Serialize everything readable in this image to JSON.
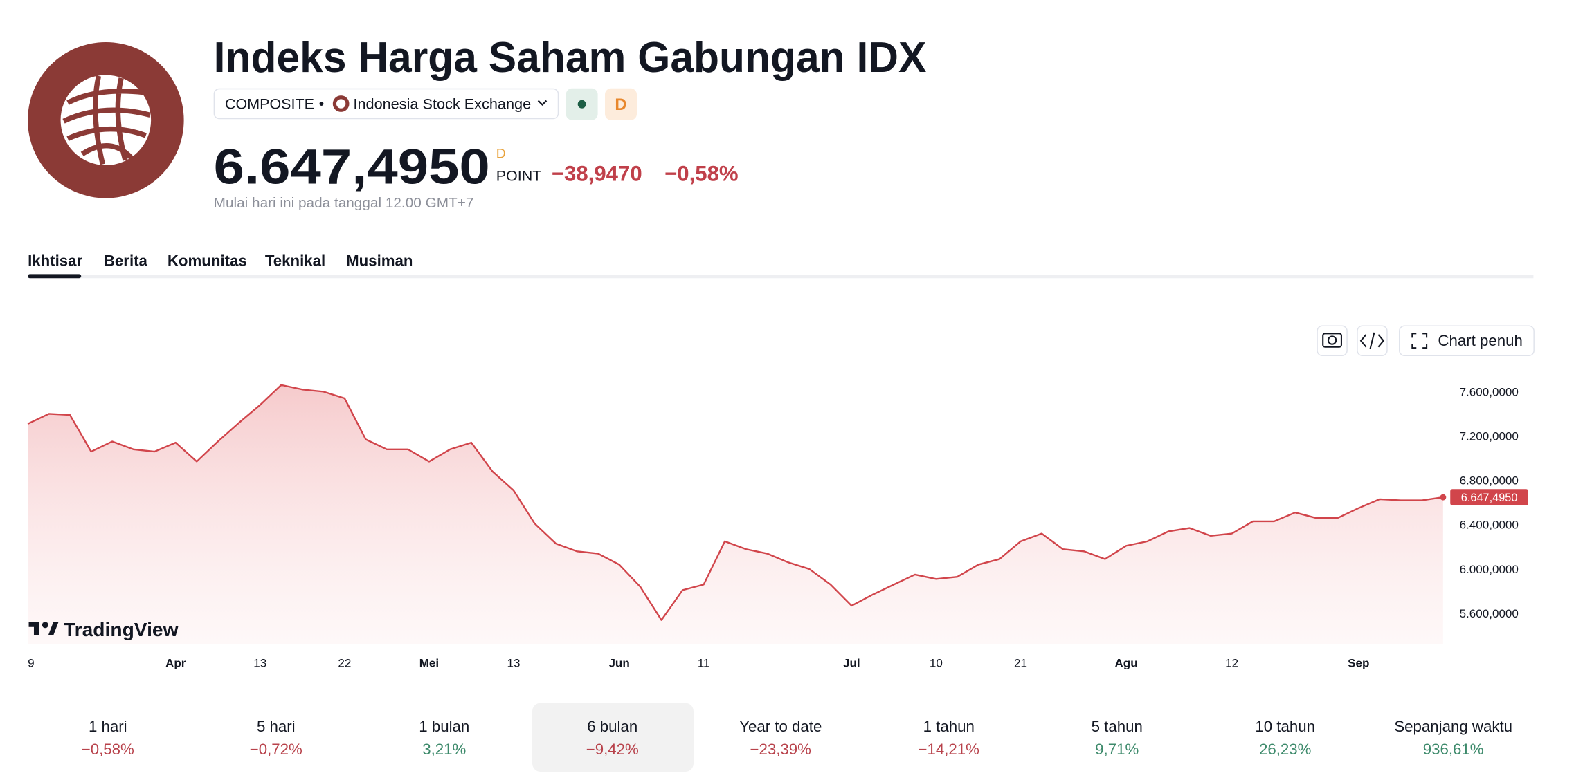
{
  "header": {
    "title": "Indeks Harga Saham Gabungan IDX",
    "symbol": "COMPOSITE",
    "exchange": "Indonesia Stock Exchange",
    "badge": "D",
    "price": "6.647,4950",
    "price_suffix": "D",
    "unit": "POINT",
    "change": "−38,9470",
    "change_percent": "−0,58%",
    "note": "Mulai hari ini pada tanggal 12.00 GMT+7"
  },
  "tabs": [
    "Ikhtisar",
    "Berita",
    "Komunitas",
    "Teknikal",
    "Musiman"
  ],
  "toolbar": {
    "fullscreen": "Chart penuh"
  },
  "chart_data": {
    "type": "line",
    "brand": "TradingView",
    "color": "#d1454b",
    "categories": [
      "9",
      null,
      null,
      null,
      null,
      null,
      null,
      "Apr",
      null,
      null,
      null,
      "13",
      null,
      null,
      null,
      "22",
      null,
      null,
      null,
      "Mei",
      null,
      null,
      null,
      "13",
      null,
      null,
      null,
      null,
      "Jun",
      null,
      null,
      null,
      "11",
      null,
      null,
      null,
      null,
      null,
      null,
      "Jul",
      null,
      null,
      null,
      "10",
      null,
      null,
      null,
      "21",
      null,
      null,
      null,
      null,
      "Agu",
      null,
      null,
      null,
      null,
      "12",
      null,
      null,
      null,
      null,
      null,
      "Sep",
      null,
      null,
      null,
      null
    ],
    "values": [
      7310,
      7400,
      7390,
      7060,
      7150,
      7080,
      7060,
      7140,
      6970,
      7150,
      7320,
      7480,
      7660,
      7620,
      7600,
      7540,
      7170,
      7080,
      7080,
      6970,
      7080,
      7140,
      6880,
      6710,
      6410,
      6230,
      6160,
      6140,
      6040,
      5840,
      5540,
      5810,
      5860,
      6250,
      6180,
      6140,
      6060,
      6000,
      5860,
      5670,
      5770,
      5860,
      5950,
      5910,
      5930,
      6040,
      6090,
      6250,
      6320,
      6180,
      6160,
      6090,
      6210,
      6250,
      6340,
      6370,
      6300,
      6320,
      6430,
      6430,
      6510,
      6460,
      6460,
      6550,
      6630,
      6620,
      6620,
      6647.495
    ],
    "ylim": [
      5320,
      7800
    ],
    "yticks": [
      {
        "value": 5600,
        "label": "5.600,0000"
      },
      {
        "value": 6000,
        "label": "6.000,0000"
      },
      {
        "value": 6400,
        "label": "6.400,0000"
      },
      {
        "value": 6800,
        "label": "6.800,0000"
      },
      {
        "value": 7200,
        "label": "7.200,0000"
      },
      {
        "value": 7600,
        "label": "7.600,0000"
      }
    ]
  },
  "periods": [
    {
      "label": "1 hari",
      "change": "−0,58%"
    },
    {
      "label": "5 hari",
      "change": "−0,72%"
    },
    {
      "label": "1 bulan",
      "change": "3,21%"
    },
    {
      "label": "6 bulan",
      "change": "−9,42%"
    },
    {
      "label": "Year to date",
      "change": "−23,39%"
    },
    {
      "label": "1 tahun",
      "change": "−14,21%"
    },
    {
      "label": "5 tahun",
      "change": "9,71%"
    },
    {
      "label": "10 tahun",
      "change": "26,23%"
    },
    {
      "label": "Sepanjang waktu",
      "change": "936,61%"
    }
  ],
  "selected_period": 3
}
